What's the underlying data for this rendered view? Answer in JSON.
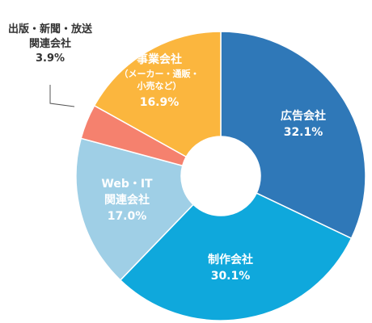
{
  "chart_data": {
    "type": "pie",
    "donut": true,
    "start_angle_deg": 0,
    "direction": "clockwise",
    "slices": [
      {
        "label": "広告会社",
        "sublabel": "",
        "value": 32.1,
        "value_text": "32.1%",
        "color": "#2f78b8",
        "text_color": "#ffffff"
      },
      {
        "label": "制作会社",
        "sublabel": "",
        "value": 30.1,
        "value_text": "30.1%",
        "color": "#0fa8dc",
        "text_color": "#ffffff"
      },
      {
        "label": "Web・IT\n関連会社",
        "sublabel": "",
        "value": 17.0,
        "value_text": "17.0%",
        "color": "#9fcfe6",
        "text_color": "#ffffff"
      },
      {
        "label": "出版・新聞・放送\n関連会社",
        "sublabel": "",
        "value": 3.9,
        "value_text": "3.9%",
        "color": "#f5816e",
        "text_color": "#333333",
        "outside": true
      },
      {
        "label": "事業会社",
        "sublabel": "（メーカー・通販・\n小売など）",
        "value": 16.9,
        "value_text": "16.9%",
        "color": "#fbb63e",
        "text_color": "#ffffff"
      }
    ]
  }
}
